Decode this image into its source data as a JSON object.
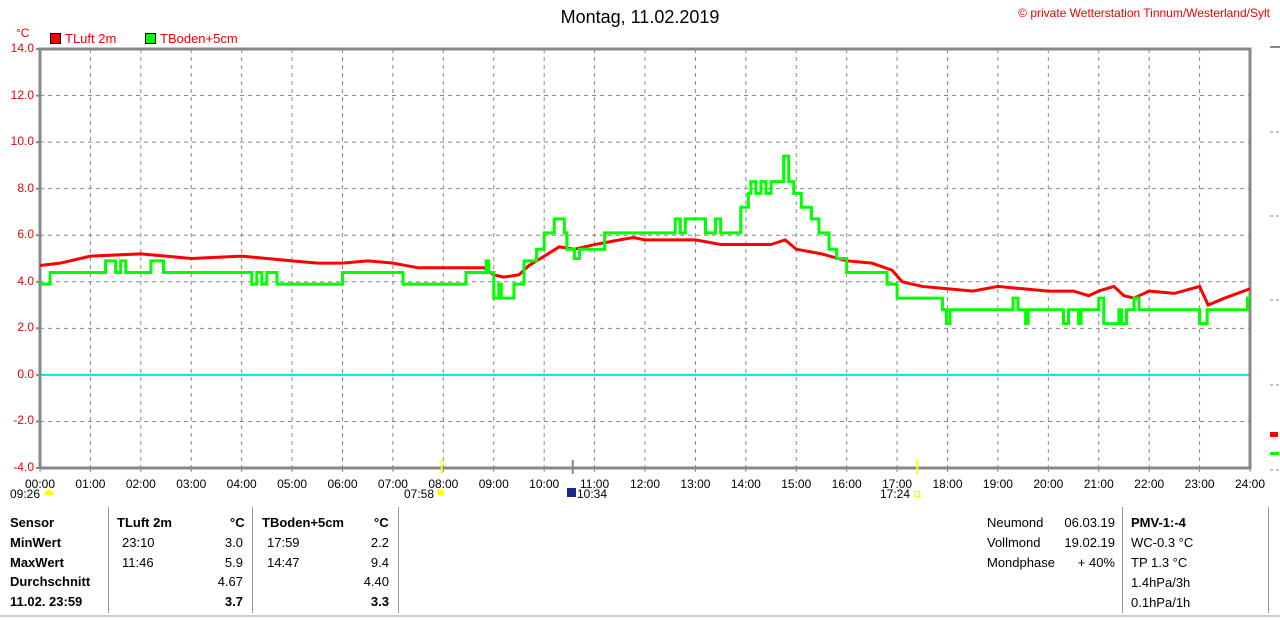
{
  "header": {
    "title": "Montag, 11.02.2019",
    "copyright": "© private Wetterstation Tinnum/Westerland/Sylt",
    "unit": "°C"
  },
  "legend": [
    {
      "label": "TLuft 2m",
      "color": "#ff0000"
    },
    {
      "label": "TBoden+5cm",
      "color": "#00ff00"
    }
  ],
  "astro": {
    "moonset": "09:26",
    "sunrise": "07:58",
    "moonrise": "10:34",
    "sunset": "17:24"
  },
  "chart_data": {
    "type": "line",
    "title": "Montag, 11.02.2019",
    "ylabel": "°C",
    "xlabel": "",
    "ylim": [
      -4,
      14
    ],
    "xlim": [
      0,
      24
    ],
    "yticks": [
      "14.0",
      "12.0",
      "10.0",
      "8.0",
      "6.0",
      "4.0",
      "2.0",
      "0.0",
      "-2.0",
      "-4.0"
    ],
    "xticks": [
      "00:00",
      "01:00",
      "02:00",
      "03:00",
      "04:00",
      "05:00",
      "06:00",
      "07:00",
      "08:00",
      "09:00",
      "10:00",
      "11:00",
      "12:00",
      "13:00",
      "14:00",
      "15:00",
      "16:00",
      "17:00",
      "18:00",
      "19:00",
      "20:00",
      "21:00",
      "22:00",
      "23:00",
      "24:00"
    ],
    "grid": true,
    "zero_line_color": "#00e0e0",
    "series": [
      {
        "name": "TLuft 2m",
        "color": "#ff0000",
        "step": false,
        "points": [
          [
            0,
            4.7
          ],
          [
            0.4,
            4.8
          ],
          [
            0.8,
            5.0
          ],
          [
            1.0,
            5.1
          ],
          [
            2.0,
            5.2
          ],
          [
            2.5,
            5.1
          ],
          [
            3.0,
            5.0
          ],
          [
            4.0,
            5.1
          ],
          [
            4.5,
            5.0
          ],
          [
            5.0,
            4.9
          ],
          [
            5.5,
            4.8
          ],
          [
            6.0,
            4.8
          ],
          [
            6.5,
            4.9
          ],
          [
            7.0,
            4.8
          ],
          [
            7.5,
            4.6
          ],
          [
            8.5,
            4.6
          ],
          [
            8.8,
            4.6
          ],
          [
            9.0,
            4.3
          ],
          [
            9.2,
            4.2
          ],
          [
            9.5,
            4.3
          ],
          [
            9.7,
            4.7
          ],
          [
            10.0,
            5.1
          ],
          [
            10.3,
            5.5
          ],
          [
            10.6,
            5.4
          ],
          [
            11.0,
            5.6
          ],
          [
            11.5,
            5.8
          ],
          [
            11.77,
            5.9
          ],
          [
            12.0,
            5.8
          ],
          [
            13.0,
            5.8
          ],
          [
            13.5,
            5.6
          ],
          [
            14.0,
            5.6
          ],
          [
            14.5,
            5.6
          ],
          [
            14.78,
            5.8
          ],
          [
            15.0,
            5.4
          ],
          [
            15.5,
            5.2
          ],
          [
            16.0,
            4.9
          ],
          [
            16.5,
            4.8
          ],
          [
            16.9,
            4.5
          ],
          [
            17.1,
            4.0
          ],
          [
            17.5,
            3.8
          ],
          [
            18.0,
            3.7
          ],
          [
            18.5,
            3.6
          ],
          [
            19.0,
            3.8
          ],
          [
            19.5,
            3.7
          ],
          [
            20.0,
            3.6
          ],
          [
            20.5,
            3.6
          ],
          [
            20.8,
            3.4
          ],
          [
            21.0,
            3.6
          ],
          [
            21.3,
            3.8
          ],
          [
            21.5,
            3.4
          ],
          [
            21.7,
            3.3
          ],
          [
            22.0,
            3.6
          ],
          [
            22.5,
            3.5
          ],
          [
            23.0,
            3.8
          ],
          [
            23.17,
            3.0
          ],
          [
            23.5,
            3.3
          ],
          [
            24.0,
            3.7
          ]
        ]
      },
      {
        "name": "TBoden+5cm",
        "color": "#00ff00",
        "step": true,
        "points": [
          [
            0,
            3.9
          ],
          [
            0.2,
            4.4
          ],
          [
            1.3,
            4.9
          ],
          [
            1.5,
            4.4
          ],
          [
            1.6,
            4.9
          ],
          [
            1.7,
            4.4
          ],
          [
            2.2,
            4.9
          ],
          [
            2.45,
            4.4
          ],
          [
            4.2,
            3.9
          ],
          [
            4.3,
            4.4
          ],
          [
            4.4,
            3.9
          ],
          [
            4.5,
            4.4
          ],
          [
            4.7,
            3.9
          ],
          [
            6.0,
            4.4
          ],
          [
            7.2,
            3.9
          ],
          [
            8.45,
            4.4
          ],
          [
            8.85,
            4.9
          ],
          [
            8.9,
            4.4
          ],
          [
            9.0,
            3.3
          ],
          [
            9.1,
            3.9
          ],
          [
            9.15,
            3.3
          ],
          [
            9.4,
            3.9
          ],
          [
            9.6,
            4.9
          ],
          [
            9.85,
            5.4
          ],
          [
            10.0,
            6.1
          ],
          [
            10.2,
            6.7
          ],
          [
            10.4,
            6.1
          ],
          [
            10.45,
            5.4
          ],
          [
            10.6,
            5.0
          ],
          [
            10.7,
            5.4
          ],
          [
            11.2,
            6.1
          ],
          [
            12.6,
            6.7
          ],
          [
            12.7,
            6.1
          ],
          [
            12.8,
            6.7
          ],
          [
            13.2,
            6.1
          ],
          [
            13.4,
            6.7
          ],
          [
            13.5,
            6.1
          ],
          [
            13.9,
            7.2
          ],
          [
            14.05,
            7.8
          ],
          [
            14.1,
            8.3
          ],
          [
            14.2,
            7.8
          ],
          [
            14.3,
            8.3
          ],
          [
            14.4,
            7.8
          ],
          [
            14.5,
            8.3
          ],
          [
            14.75,
            9.4
          ],
          [
            14.85,
            8.3
          ],
          [
            14.95,
            7.8
          ],
          [
            15.1,
            7.2
          ],
          [
            15.3,
            6.7
          ],
          [
            15.45,
            6.1
          ],
          [
            15.65,
            5.4
          ],
          [
            15.8,
            5.0
          ],
          [
            16.0,
            4.4
          ],
          [
            16.8,
            3.9
          ],
          [
            17.0,
            3.3
          ],
          [
            17.3,
            3.3
          ],
          [
            17.9,
            2.8
          ],
          [
            17.98,
            2.2
          ],
          [
            18.05,
            2.8
          ],
          [
            19.3,
            3.3
          ],
          [
            19.4,
            2.8
          ],
          [
            19.55,
            2.2
          ],
          [
            19.6,
            2.8
          ],
          [
            20.3,
            2.2
          ],
          [
            20.4,
            2.8
          ],
          [
            20.6,
            2.2
          ],
          [
            20.65,
            2.8
          ],
          [
            21.0,
            3.3
          ],
          [
            21.1,
            2.2
          ],
          [
            21.4,
            2.8
          ],
          [
            21.45,
            2.2
          ],
          [
            21.55,
            2.8
          ],
          [
            21.7,
            3.3
          ],
          [
            21.8,
            2.8
          ],
          [
            23.0,
            2.2
          ],
          [
            23.15,
            2.8
          ],
          [
            23.95,
            3.3
          ]
        ]
      }
    ]
  },
  "stats": {
    "headers": {
      "sensor": "Sensor",
      "s1": "TLuft 2m",
      "u1": "°C",
      "s2": "TBoden+5cm",
      "u2": "°C"
    },
    "rows": [
      {
        "label": "MinWert",
        "t1": "23:10",
        "v1": "3.0",
        "t2": "17:59",
        "v2": "2.2"
      },
      {
        "label": "MaxWert",
        "t1": "11:46",
        "v1": "5.9",
        "t2": "14:47",
        "v2": "9.4"
      },
      {
        "label": "Durchschnitt",
        "t1": "",
        "v1": "4.67",
        "t2": "",
        "v2": "4.40"
      },
      {
        "label": "11.02. 23:59",
        "t1": "",
        "v1": "3.7",
        "t2": "",
        "v2": "3.3"
      }
    ]
  },
  "moon": [
    {
      "label": "Neumond",
      "value": "06.03.19"
    },
    {
      "label": "Vollmond",
      "value": "19.02.19"
    },
    {
      "label": "Mondphase",
      "value": "+ 40%"
    }
  ],
  "extra": {
    "pmv": "PMV-1:-4",
    "lines": [
      "WC-0.3 °C",
      "TP 1.3 °C",
      "1.4hPa/3h",
      "0.1hPa/1h"
    ]
  }
}
